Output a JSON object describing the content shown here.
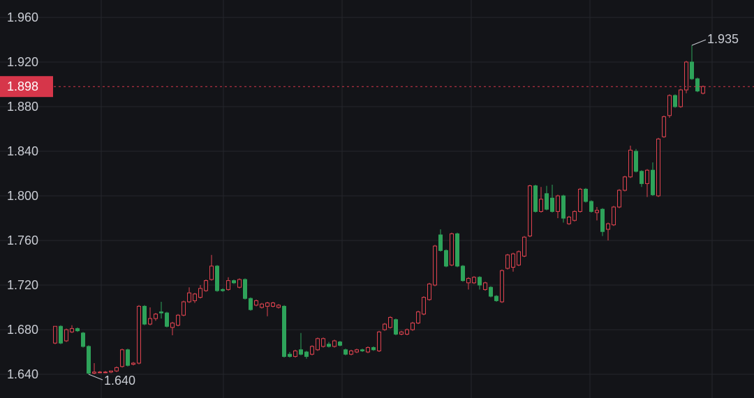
{
  "chart_data": {
    "type": "candlestick",
    "ylim": [
      1.61875,
      1.975625
    ],
    "yticks": [
      {
        "value": 1.64,
        "label": "1.640"
      },
      {
        "value": 1.68,
        "label": "1.680"
      },
      {
        "value": 1.72,
        "label": "1.720"
      },
      {
        "value": 1.76,
        "label": "1.760"
      },
      {
        "value": 1.8,
        "label": "1.800"
      },
      {
        "value": 1.84,
        "label": "1.840"
      },
      {
        "value": 1.88,
        "label": "1.880"
      },
      {
        "value": 1.92,
        "label": "1.920"
      },
      {
        "value": 1.96,
        "label": "1.960"
      }
    ],
    "grid": true,
    "up_color": "#e0434f",
    "down_color": "#2ea35a",
    "last_price": 1.898,
    "last_price_color": "#d6364a",
    "max_label": 1.935,
    "min_label": {
      "value": 1.64,
      "label": "1.640"
    },
    "candles": [
      [
        1.668,
        1.683,
        1.667,
        1.683
      ],
      [
        1.683,
        1.684,
        1.667,
        1.668
      ],
      [
        1.67,
        1.681,
        1.669,
        1.68
      ],
      [
        1.678,
        1.684,
        1.677,
        1.681
      ],
      [
        1.681,
        1.682,
        1.678,
        1.679
      ],
      [
        1.677,
        1.678,
        1.664,
        1.665
      ],
      [
        1.665,
        1.666,
        1.64,
        1.641
      ],
      [
        1.641,
        1.65,
        1.64,
        1.642
      ],
      [
        1.642,
        1.643,
        1.641,
        1.642
      ],
      [
        1.642,
        1.643,
        1.641,
        1.642
      ],
      [
        1.642,
        1.643,
        1.641,
        1.643
      ],
      [
        1.643,
        1.647,
        1.642,
        1.646
      ],
      [
        1.647,
        1.663,
        1.646,
        1.662
      ],
      [
        1.662,
        1.663,
        1.647,
        1.648
      ],
      [
        1.649,
        1.651,
        1.648,
        1.65
      ],
      [
        1.65,
        1.702,
        1.649,
        1.701
      ],
      [
        1.701,
        1.702,
        1.684,
        1.685
      ],
      [
        1.685,
        1.7,
        1.684,
        1.69
      ],
      [
        1.69,
        1.695,
        1.688,
        1.694
      ],
      [
        1.696,
        1.705,
        1.69,
        1.695
      ],
      [
        1.695,
        1.696,
        1.682,
        1.683
      ],
      [
        1.682,
        1.687,
        1.675,
        1.686
      ],
      [
        1.684,
        1.694,
        1.683,
        1.693
      ],
      [
        1.693,
        1.706,
        1.692,
        1.705
      ],
      [
        1.705,
        1.718,
        1.704,
        1.713
      ],
      [
        1.706,
        1.713,
        1.704,
        1.712
      ],
      [
        1.709,
        1.72,
        1.708,
        1.717
      ],
      [
        1.715,
        1.725,
        1.714,
        1.724
      ],
      [
        1.725,
        1.747,
        1.724,
        1.737
      ],
      [
        1.737,
        1.738,
        1.714,
        1.715
      ],
      [
        1.716,
        1.717,
        1.714,
        1.715
      ],
      [
        1.716,
        1.727,
        1.715,
        1.724
      ],
      [
        1.724,
        1.725,
        1.721,
        1.722
      ],
      [
        1.718,
        1.726,
        1.717,
        1.725
      ],
      [
        1.725,
        1.726,
        1.707,
        1.708
      ],
      [
        1.708,
        1.709,
        1.697,
        1.698
      ],
      [
        1.702,
        1.707,
        1.701,
        1.706
      ],
      [
        1.7,
        1.704,
        1.699,
        1.703
      ],
      [
        1.701,
        1.705,
        1.692,
        1.704
      ],
      [
        1.701,
        1.705,
        1.7,
        1.704
      ],
      [
        1.7,
        1.703,
        1.699,
        1.702
      ],
      [
        1.701,
        1.702,
        1.655,
        1.656
      ],
      [
        1.658,
        1.66,
        1.655,
        1.656
      ],
      [
        1.656,
        1.662,
        1.655,
        1.661
      ],
      [
        1.662,
        1.677,
        1.657,
        1.658
      ],
      [
        1.66,
        1.661,
        1.654,
        1.656
      ],
      [
        1.658,
        1.666,
        1.657,
        1.665
      ],
      [
        1.662,
        1.673,
        1.661,
        1.672
      ],
      [
        1.665,
        1.673,
        1.664,
        1.672
      ],
      [
        1.667,
        1.669,
        1.664,
        1.665
      ],
      [
        1.665,
        1.671,
        1.664,
        1.67
      ],
      [
        1.669,
        1.67,
        1.665,
        1.666
      ],
      [
        1.662,
        1.663,
        1.657,
        1.658
      ],
      [
        1.658,
        1.662,
        1.657,
        1.661
      ],
      [
        1.66,
        1.663,
        1.659,
        1.662
      ],
      [
        1.662,
        1.663,
        1.66,
        1.661
      ],
      [
        1.66,
        1.665,
        1.659,
        1.664
      ],
      [
        1.664,
        1.665,
        1.661,
        1.662
      ],
      [
        1.661,
        1.679,
        1.66,
        1.678
      ],
      [
        1.68,
        1.686,
        1.679,
        1.685
      ],
      [
        1.682,
        1.692,
        1.681,
        1.691
      ],
      [
        1.689,
        1.69,
        1.675,
        1.676
      ],
      [
        1.676,
        1.679,
        1.675,
        1.678
      ],
      [
        1.676,
        1.681,
        1.675,
        1.68
      ],
      [
        1.68,
        1.687,
        1.679,
        1.686
      ],
      [
        1.686,
        1.697,
        1.685,
        1.696
      ],
      [
        1.694,
        1.71,
        1.693,
        1.709
      ],
      [
        1.707,
        1.722,
        1.706,
        1.721
      ],
      [
        1.72,
        1.756,
        1.719,
        1.755
      ],
      [
        1.765,
        1.77,
        1.75,
        1.751
      ],
      [
        1.751,
        1.752,
        1.736,
        1.737
      ],
      [
        1.738,
        1.767,
        1.737,
        1.766
      ],
      [
        1.766,
        1.767,
        1.736,
        1.737
      ],
      [
        1.737,
        1.738,
        1.723,
        1.724
      ],
      [
        1.722,
        1.727,
        1.716,
        1.726
      ],
      [
        1.722,
        1.728,
        1.721,
        1.727
      ],
      [
        1.727,
        1.728,
        1.716,
        1.72
      ],
      [
        1.716,
        1.723,
        1.715,
        1.722
      ],
      [
        1.718,
        1.719,
        1.709,
        1.71
      ],
      [
        1.71,
        1.711,
        1.705,
        1.706
      ],
      [
        1.705,
        1.734,
        1.704,
        1.733
      ],
      [
        1.735,
        1.748,
        1.734,
        1.747
      ],
      [
        1.736,
        1.749,
        1.732,
        1.748
      ],
      [
        1.738,
        1.751,
        1.737,
        1.75
      ],
      [
        1.746,
        1.764,
        1.745,
        1.763
      ],
      [
        1.764,
        1.81,
        1.763,
        1.809
      ],
      [
        1.809,
        1.81,
        1.785,
        1.786
      ],
      [
        1.786,
        1.808,
        1.785,
        1.797
      ],
      [
        1.802,
        1.809,
        1.787,
        1.788
      ],
      [
        1.798,
        1.81,
        1.785,
        1.786
      ],
      [
        1.786,
        1.801,
        1.78,
        1.8
      ],
      [
        1.8,
        1.801,
        1.776,
        1.78
      ],
      [
        1.775,
        1.782,
        1.774,
        1.781
      ],
      [
        1.778,
        1.787,
        1.777,
        1.786
      ],
      [
        1.786,
        1.807,
        1.785,
        1.806
      ],
      [
        1.806,
        1.807,
        1.794,
        1.795
      ],
      [
        1.795,
        1.796,
        1.785,
        1.786
      ],
      [
        1.785,
        1.79,
        1.778,
        1.787
      ],
      [
        1.788,
        1.789,
        1.764,
        1.768
      ],
      [
        1.77,
        1.776,
        1.76,
        1.775
      ],
      [
        1.774,
        1.791,
        1.773,
        1.79
      ],
      [
        1.79,
        1.806,
        1.789,
        1.805
      ],
      [
        1.805,
        1.818,
        1.804,
        1.817
      ],
      [
        1.817,
        1.845,
        1.816,
        1.841
      ],
      [
        1.84,
        1.842,
        1.821,
        1.822
      ],
      [
        1.822,
        1.823,
        1.808,
        1.811
      ],
      [
        1.811,
        1.824,
        1.799,
        1.823
      ],
      [
        1.823,
        1.83,
        1.8,
        1.801
      ],
      [
        1.8,
        1.852,
        1.799,
        1.851
      ],
      [
        1.853,
        1.872,
        1.852,
        1.871
      ],
      [
        1.872,
        1.891,
        1.87,
        1.89
      ],
      [
        1.89,
        1.891,
        1.879,
        1.88
      ],
      [
        1.88,
        1.896,
        1.879,
        1.895
      ],
      [
        1.895,
        1.921,
        1.892,
        1.92
      ],
      [
        1.92,
        1.935,
        1.904,
        1.905
      ],
      [
        1.905,
        1.906,
        1.893,
        1.894
      ],
      [
        1.892,
        1.899,
        1.891,
        1.898
      ]
    ]
  }
}
